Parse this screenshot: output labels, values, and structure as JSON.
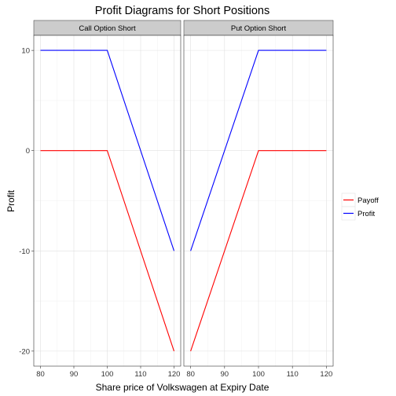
{
  "chart_data": {
    "type": "line",
    "title": "Profit Diagrams for Short Positions",
    "xlabel": "Share price of Volkswagen at Expiry Date",
    "ylabel": "Profit",
    "xlim": [
      78,
      122
    ],
    "ylim": [
      -21.5,
      11.5
    ],
    "x_ticks": [
      80,
      90,
      100,
      110,
      120
    ],
    "y_ticks": [
      10,
      0,
      -10,
      -20
    ],
    "grid": true,
    "legend_position": "right",
    "x": [
      80,
      100,
      120
    ],
    "panels": [
      {
        "label": "Call Option Short",
        "series": [
          {
            "name": "Payoff",
            "color": "#ff0000",
            "values": [
              0,
              0,
              -20
            ]
          },
          {
            "name": "Profit",
            "color": "#0000ff",
            "values": [
              10,
              10,
              -10
            ]
          }
        ]
      },
      {
        "label": "Put Option Short",
        "series": [
          {
            "name": "Payoff",
            "color": "#ff0000",
            "values": [
              -20,
              0,
              0
            ]
          },
          {
            "name": "Profit",
            "color": "#0000ff",
            "values": [
              -10,
              10,
              10
            ]
          }
        ]
      }
    ],
    "legend": [
      {
        "name": "Payoff",
        "color": "#ff0000"
      },
      {
        "name": "Profit",
        "color": "#0000ff"
      }
    ]
  }
}
